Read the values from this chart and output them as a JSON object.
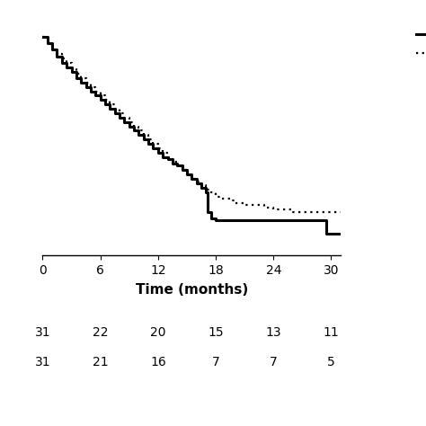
{
  "xlabel": "Time (months)",
  "xlim": [
    0,
    31
  ],
  "ylim": [
    0,
    1.05
  ],
  "xticks": [
    0,
    6,
    12,
    18,
    24,
    30
  ],
  "solid_times": [
    0,
    0.5,
    1,
    1.5,
    2,
    2.5,
    3,
    3.5,
    4,
    4.5,
    5,
    5.5,
    6,
    6.5,
    7,
    7.5,
    8,
    8.5,
    9,
    9.5,
    10,
    10.5,
    11,
    11.5,
    12,
    12.5,
    13,
    13.5,
    14,
    14.5,
    15,
    15.5,
    16,
    16.5,
    17,
    17.2,
    17.5,
    18,
    20,
    22,
    24,
    26,
    28,
    29,
    29.5,
    30,
    31
  ],
  "solid_surv": [
    1.0,
    0.97,
    0.94,
    0.91,
    0.88,
    0.86,
    0.84,
    0.81,
    0.79,
    0.77,
    0.75,
    0.73,
    0.71,
    0.69,
    0.67,
    0.65,
    0.63,
    0.61,
    0.59,
    0.57,
    0.55,
    0.53,
    0.51,
    0.49,
    0.47,
    0.45,
    0.44,
    0.42,
    0.41,
    0.39,
    0.37,
    0.35,
    0.33,
    0.31,
    0.29,
    0.2,
    0.17,
    0.16,
    0.16,
    0.16,
    0.16,
    0.16,
    0.16,
    0.16,
    0.1,
    0.1,
    0.1
  ],
  "dotted_times": [
    0,
    0.5,
    1,
    1.5,
    2,
    2.5,
    3,
    3.5,
    4,
    4.5,
    5,
    5.5,
    6,
    6.5,
    7,
    7.5,
    8,
    8.5,
    9,
    9.5,
    10,
    10.5,
    11,
    11.5,
    12,
    12.5,
    13,
    13.5,
    14,
    14.5,
    15,
    15.5,
    16,
    16.5,
    17,
    17.5,
    18,
    18.5,
    19,
    19.5,
    20,
    21,
    22,
    23,
    24,
    25,
    26,
    27,
    28,
    29,
    30,
    31
  ],
  "dotted_surv": [
    1.0,
    0.97,
    0.94,
    0.92,
    0.9,
    0.88,
    0.85,
    0.83,
    0.81,
    0.79,
    0.77,
    0.75,
    0.73,
    0.71,
    0.69,
    0.67,
    0.65,
    0.63,
    0.61,
    0.59,
    0.57,
    0.55,
    0.53,
    0.51,
    0.49,
    0.47,
    0.45,
    0.43,
    0.41,
    0.39,
    0.37,
    0.35,
    0.34,
    0.32,
    0.3,
    0.29,
    0.27,
    0.26,
    0.26,
    0.25,
    0.24,
    0.23,
    0.23,
    0.22,
    0.21,
    0.21,
    0.2,
    0.2,
    0.2,
    0.2,
    0.2,
    0.2
  ],
  "at_risk_times": [
    0,
    6,
    12,
    18,
    24,
    30
  ],
  "at_risk_solid": [
    31,
    22,
    20,
    15,
    13,
    11
  ],
  "at_risk_dotted": [
    31,
    21,
    16,
    7,
    7,
    5
  ],
  "line_color": "#000000",
  "bg_color": "#ffffff",
  "lw_solid": 2.2,
  "lw_dotted": 1.6
}
